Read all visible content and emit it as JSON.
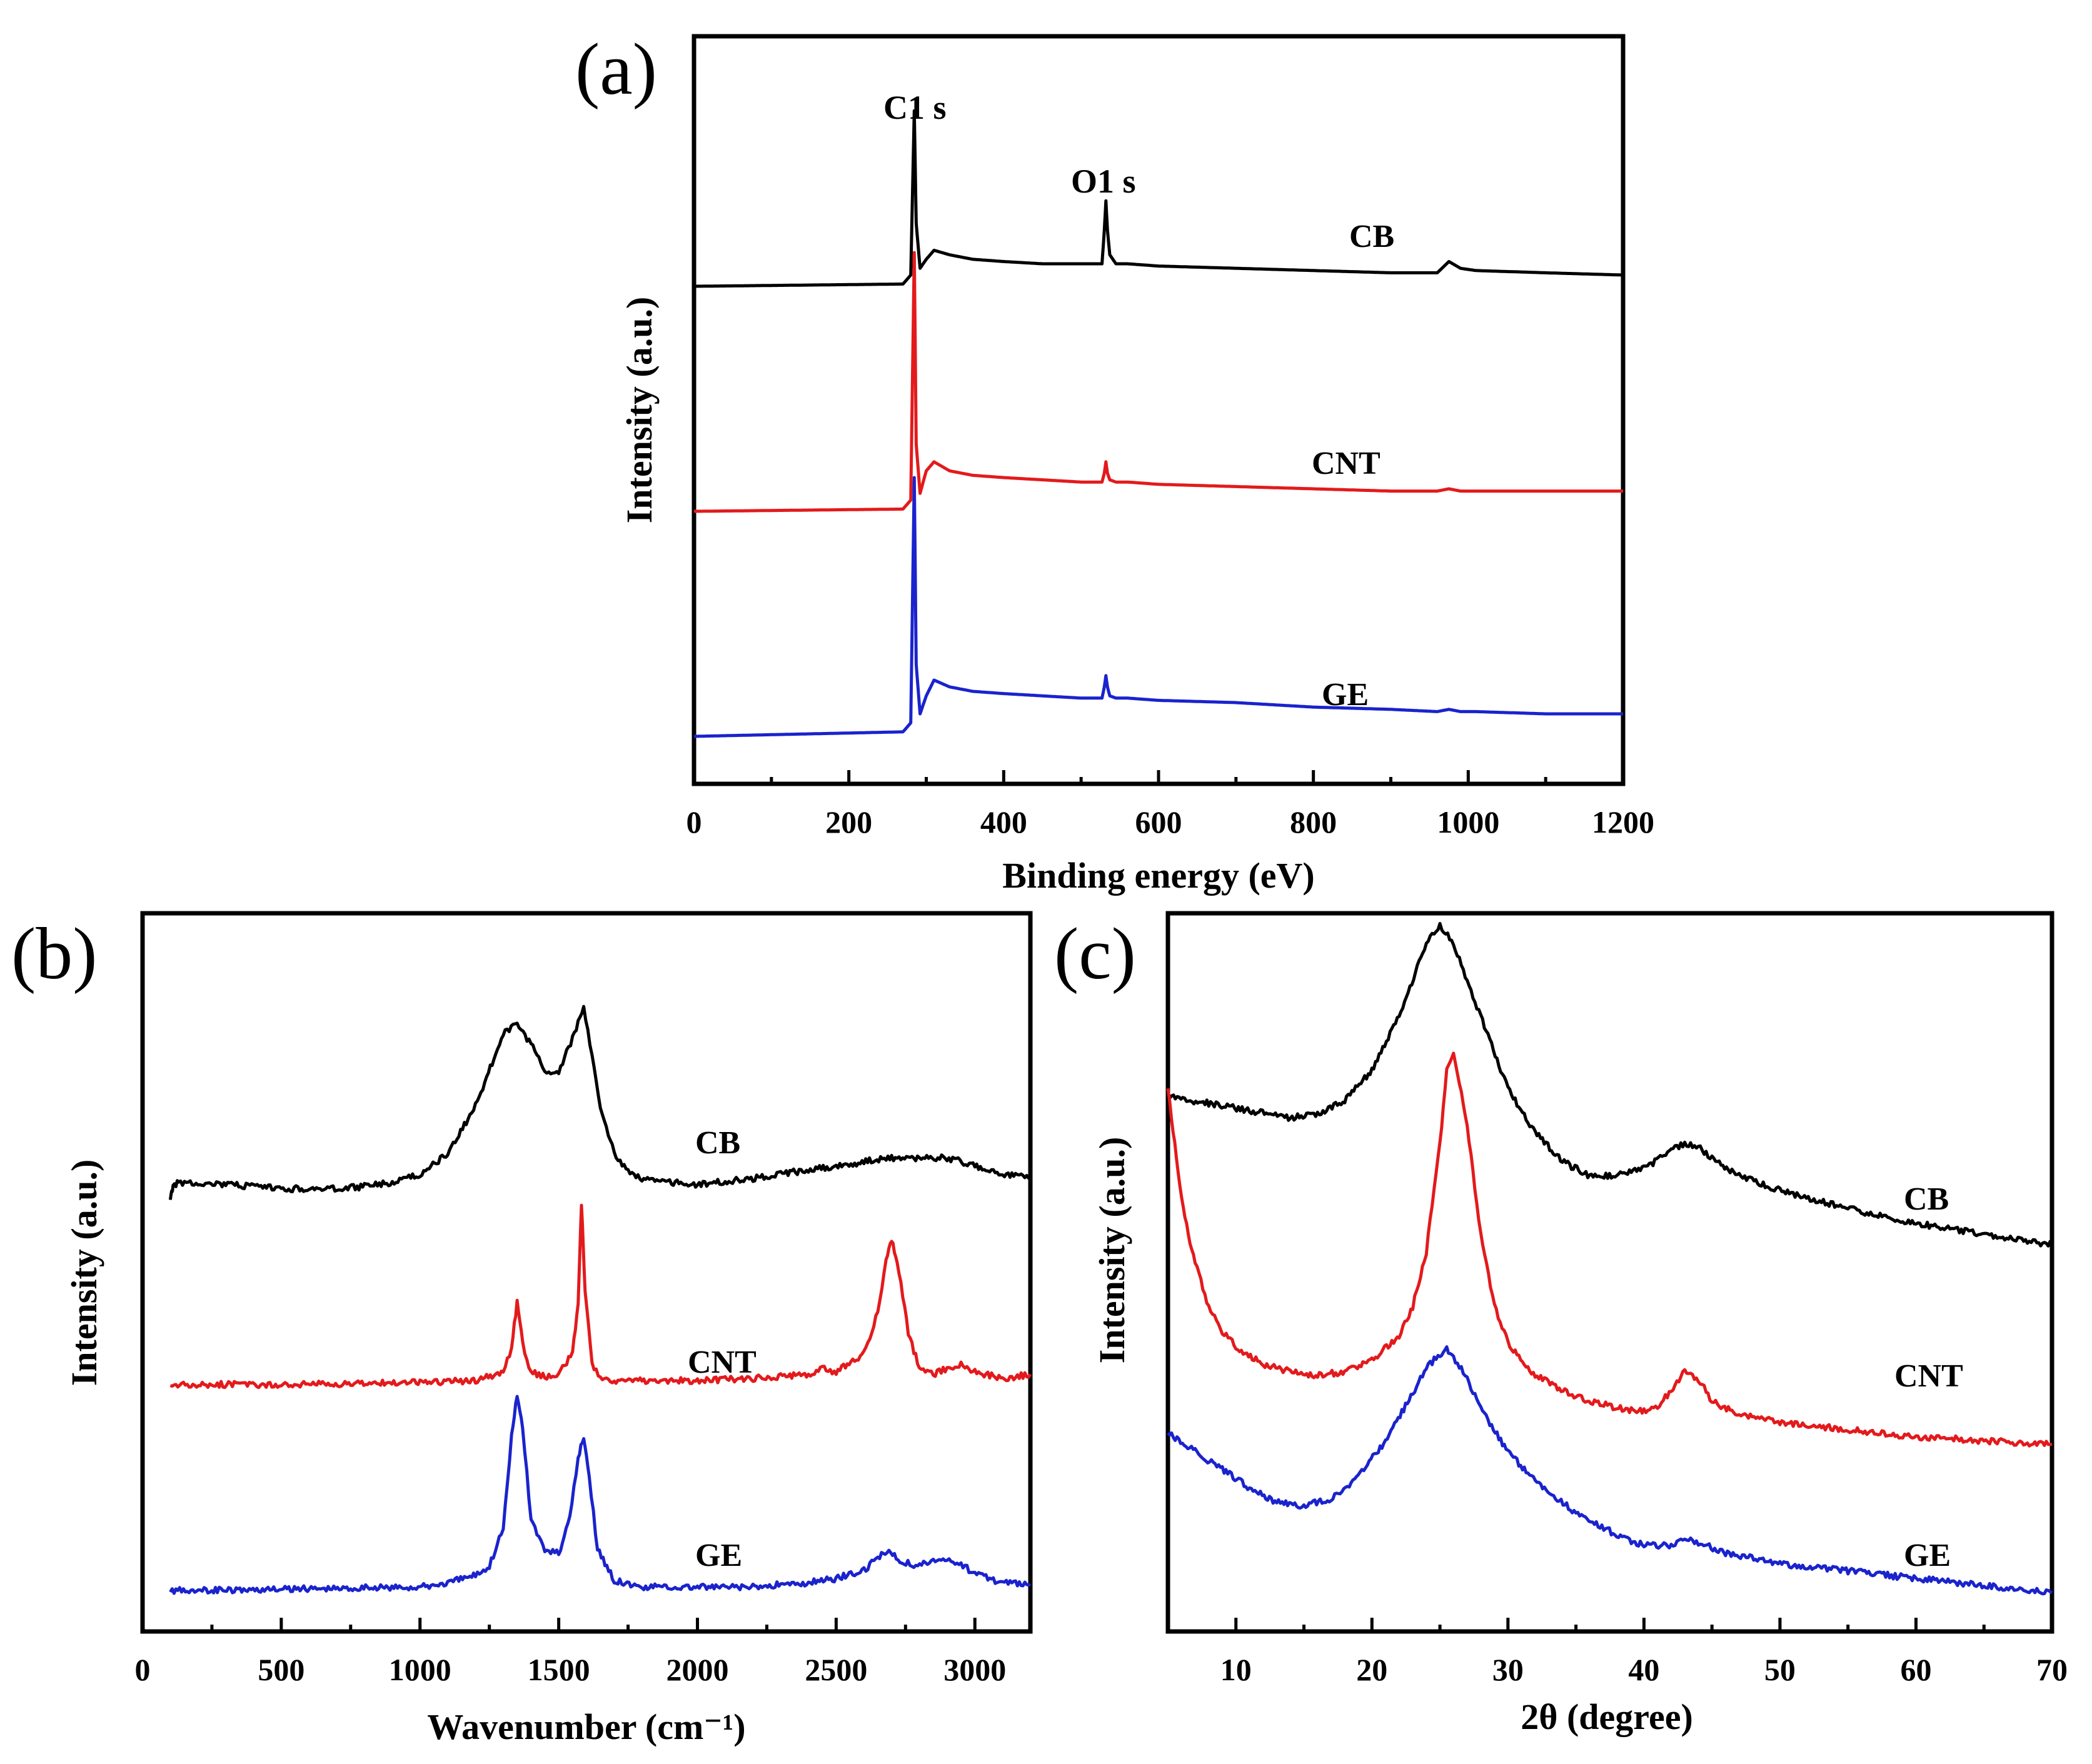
{
  "figure_caption": "",
  "chart_data": [
    {
      "panel": "(a)",
      "type": "line",
      "title": "",
      "xlabel": "Binding energy (eV)",
      "ylabel": "Intensity (a.u.)",
      "xlim": [
        0,
        1200
      ],
      "xticks": [
        0,
        200,
        400,
        600,
        800,
        1000,
        1200
      ],
      "xtick_labels": [
        "0",
        "200",
        "400",
        "600",
        "800",
        "1000",
        "1200"
      ],
      "y_axis_ticks": "none (arbitrary units)",
      "annotations": [
        {
          "text": "C1 s",
          "x": 285
        },
        {
          "text": "O1 s",
          "x": 532
        }
      ],
      "series": [
        {
          "name": "CB",
          "color": "#000000",
          "offset": 2.0,
          "x": [
            0,
            270,
            280,
            284.5,
            287,
            292,
            300,
            310,
            330,
            360,
            400,
            450,
            500,
            520,
            527,
            530,
            532,
            534,
            537,
            545,
            560,
            600,
            700,
            800,
            900,
            960,
            975,
            990,
            1010,
            1100,
            1200
          ],
          "y": [
            0.0,
            0.01,
            0.05,
            0.78,
            0.28,
            0.08,
            0.12,
            0.16,
            0.14,
            0.12,
            0.11,
            0.1,
            0.1,
            0.1,
            0.1,
            0.25,
            0.38,
            0.25,
            0.14,
            0.1,
            0.1,
            0.09,
            0.08,
            0.07,
            0.06,
            0.06,
            0.11,
            0.08,
            0.07,
            0.06,
            0.05
          ]
        },
        {
          "name": "CNT",
          "color": "#e31a1c",
          "offset": 1.0,
          "x": [
            0,
            270,
            280,
            284.5,
            287,
            292,
            300,
            310,
            330,
            360,
            400,
            450,
            500,
            520,
            527,
            530,
            532,
            534,
            537,
            545,
            560,
            600,
            700,
            800,
            900,
            960,
            975,
            990,
            1010,
            1100,
            1200
          ],
          "y": [
            0.0,
            0.01,
            0.05,
            1.15,
            0.3,
            0.08,
            0.18,
            0.22,
            0.18,
            0.16,
            0.15,
            0.14,
            0.13,
            0.13,
            0.13,
            0.17,
            0.22,
            0.17,
            0.14,
            0.13,
            0.13,
            0.12,
            0.11,
            0.1,
            0.09,
            0.09,
            0.1,
            0.09,
            0.09,
            0.09,
            0.09
          ]
        },
        {
          "name": "GE",
          "color": "#1a23cc",
          "offset": 0.0,
          "x": [
            0,
            270,
            280,
            284.5,
            287,
            292,
            300,
            310,
            330,
            360,
            400,
            450,
            500,
            520,
            527,
            530,
            532,
            534,
            537,
            545,
            560,
            600,
            700,
            800,
            900,
            960,
            975,
            990,
            1010,
            1100,
            1200
          ],
          "y": [
            0.0,
            0.02,
            0.06,
            1.15,
            0.32,
            0.1,
            0.18,
            0.25,
            0.22,
            0.2,
            0.19,
            0.18,
            0.17,
            0.17,
            0.17,
            0.22,
            0.27,
            0.22,
            0.18,
            0.17,
            0.17,
            0.16,
            0.15,
            0.13,
            0.12,
            0.11,
            0.12,
            0.11,
            0.11,
            0.1,
            0.1
          ]
        }
      ]
    },
    {
      "panel": "(b)",
      "type": "line",
      "title": "",
      "xlabel": "Wavenumber (cm⁻¹)",
      "ylabel": "Intensity (a.u.)",
      "xlim": [
        0,
        3200
      ],
      "xticks": [
        0,
        500,
        1000,
        1500,
        2000,
        2500,
        3000
      ],
      "xtick_labels": [
        "0",
        "500",
        "1000",
        "1500",
        "2000",
        "2500",
        "3000"
      ],
      "y_axis_ticks": "none (arbitrary units)",
      "series": [
        {
          "name": "CB",
          "color": "#000000",
          "offset": 1.9,
          "x": [
            100,
            110,
            130,
            200,
            300,
            400,
            500,
            600,
            700,
            800,
            900,
            1000,
            1100,
            1200,
            1300,
            1350,
            1400,
            1450,
            1500,
            1550,
            1590,
            1620,
            1650,
            1700,
            1750,
            1800,
            1900,
            2000,
            2200,
            2400,
            2600,
            2700,
            2800,
            2900,
            3000,
            3100,
            3200
          ],
          "y": [
            0.0,
            0.06,
            0.08,
            0.08,
            0.07,
            0.06,
            0.05,
            0.05,
            0.05,
            0.06,
            0.08,
            0.12,
            0.22,
            0.45,
            0.8,
            0.85,
            0.75,
            0.62,
            0.62,
            0.78,
            0.92,
            0.7,
            0.45,
            0.22,
            0.14,
            0.1,
            0.08,
            0.07,
            0.1,
            0.14,
            0.18,
            0.2,
            0.2,
            0.2,
            0.16,
            0.12,
            0.1
          ]
        },
        {
          "name": "CNT",
          "color": "#e31a1c",
          "offset": 1.0,
          "x": [
            100,
            500,
            1000,
            1200,
            1300,
            1330,
            1350,
            1370,
            1400,
            1450,
            1500,
            1550,
            1570,
            1582,
            1595,
            1620,
            1650,
            1700,
            1800,
            2000,
            2200,
            2400,
            2450,
            2500,
            2600,
            2650,
            2680,
            2700,
            2720,
            2760,
            2800,
            2850,
            2900,
            2950,
            3000,
            3100,
            3200
          ],
          "y": [
            0.0,
            0.0,
            0.01,
            0.02,
            0.06,
            0.18,
            0.4,
            0.2,
            0.06,
            0.04,
            0.05,
            0.15,
            0.4,
            0.88,
            0.45,
            0.1,
            0.04,
            0.02,
            0.02,
            0.02,
            0.03,
            0.05,
            0.08,
            0.06,
            0.15,
            0.35,
            0.6,
            0.7,
            0.6,
            0.25,
            0.08,
            0.05,
            0.08,
            0.1,
            0.06,
            0.03,
            0.05
          ]
        },
        {
          "name": "GE",
          "color": "#1a23cc",
          "offset": 0.0,
          "x": [
            100,
            500,
            1000,
            1100,
            1200,
            1250,
            1300,
            1330,
            1350,
            1370,
            1400,
            1450,
            1500,
            1540,
            1570,
            1590,
            1610,
            1640,
            1700,
            1800,
            2000,
            2200,
            2400,
            2500,
            2600,
            2650,
            2690,
            2730,
            2780,
            2850,
            2900,
            2950,
            3000,
            3100,
            3200
          ],
          "y": [
            0.0,
            0.01,
            0.02,
            0.04,
            0.08,
            0.12,
            0.3,
            0.75,
            0.95,
            0.8,
            0.35,
            0.2,
            0.18,
            0.35,
            0.65,
            0.75,
            0.55,
            0.2,
            0.05,
            0.02,
            0.02,
            0.02,
            0.04,
            0.06,
            0.1,
            0.16,
            0.2,
            0.15,
            0.12,
            0.15,
            0.16,
            0.13,
            0.08,
            0.04,
            0.03
          ]
        }
      ]
    },
    {
      "panel": "(c)",
      "type": "line",
      "title": "",
      "xlabel": "2θ (degree)",
      "ylabel": "Intensity (a.u.)",
      "xlim": [
        5,
        70
      ],
      "xticks": [
        10,
        20,
        30,
        40,
        50,
        60,
        70
      ],
      "xtick_labels": [
        "10",
        "20",
        "30",
        "40",
        "50",
        "60",
        "70"
      ],
      "y_axis_ticks": "none (arbitrary units)",
      "series": [
        {
          "name": "CB",
          "color": "#000000",
          "offset": 0.0,
          "x": [
            5,
            8,
            11,
            14,
            16,
            18,
            20,
            22,
            24,
            25,
            26,
            27,
            28,
            30,
            32,
            34,
            36,
            38,
            40,
            42,
            43,
            44,
            45,
            47,
            50,
            55,
            60,
            65,
            70
          ],
          "y": [
            1.08,
            1.06,
            1.04,
            1.02,
            1.03,
            1.07,
            1.15,
            1.3,
            1.5,
            1.55,
            1.5,
            1.4,
            1.3,
            1.1,
            0.98,
            0.9,
            0.86,
            0.86,
            0.88,
            0.93,
            0.95,
            0.94,
            0.91,
            0.86,
            0.82,
            0.77,
            0.73,
            0.7,
            0.67
          ]
        },
        {
          "name": "CNT",
          "color": "#e31a1c",
          "offset": 0.0,
          "x": [
            5,
            5.5,
            6,
            6.5,
            7,
            8,
            9,
            10,
            12,
            14,
            16,
            18,
            20,
            22,
            23,
            24,
            25,
            25.5,
            26,
            27,
            28,
            29,
            30,
            32,
            35,
            38,
            40,
            41,
            42,
            43,
            44,
            45,
            47,
            50,
            55,
            60,
            65,
            70
          ],
          "y": [
            1.1,
            0.95,
            0.8,
            0.7,
            0.62,
            0.5,
            0.43,
            0.39,
            0.34,
            0.32,
            0.31,
            0.32,
            0.35,
            0.42,
            0.5,
            0.65,
            0.95,
            1.15,
            1.2,
            1.0,
            0.7,
            0.5,
            0.4,
            0.31,
            0.25,
            0.22,
            0.21,
            0.22,
            0.27,
            0.32,
            0.3,
            0.24,
            0.2,
            0.18,
            0.16,
            0.14,
            0.13,
            0.12
          ]
        },
        {
          "name": "GE",
          "color": "#1a23cc",
          "offset": 0.0,
          "x": [
            5,
            7,
            9,
            11,
            13,
            15,
            17,
            19,
            21,
            23,
            24,
            25,
            25.5,
            26,
            27,
            28,
            30,
            32,
            35,
            38,
            40,
            42,
            43,
            44,
            46,
            50,
            55,
            60,
            65,
            70
          ],
          "y": [
            0.15,
            0.1,
            0.05,
            0.0,
            -0.04,
            -0.05,
            -0.03,
            0.03,
            0.13,
            0.26,
            0.33,
            0.37,
            0.38,
            0.36,
            0.3,
            0.22,
            0.1,
            0.02,
            -0.07,
            -0.13,
            -0.16,
            -0.16,
            -0.14,
            -0.15,
            -0.18,
            -0.21,
            -0.23,
            -0.25,
            -0.27,
            -0.29
          ]
        }
      ]
    }
  ]
}
